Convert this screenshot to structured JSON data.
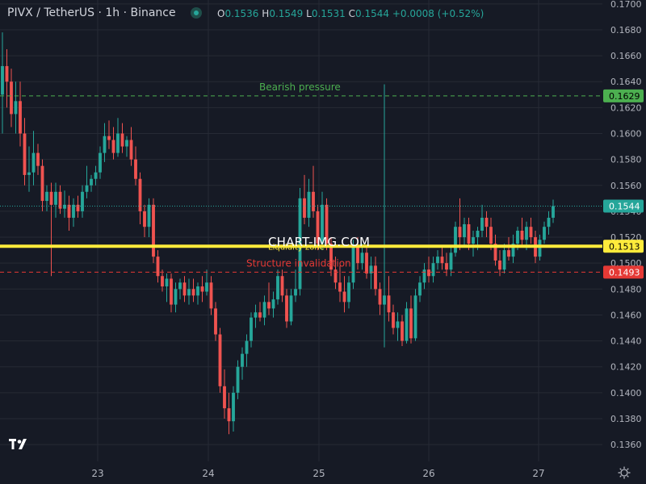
{
  "header": {
    "title": "PIVX / TetherUS · 1h · Binance",
    "ohlc": {
      "o_label": "O",
      "o": "0.1536",
      "h_label": "H",
      "h": "0.1549",
      "l_label": "L",
      "l": "0.1531",
      "c_label": "C",
      "c": "0.1544",
      "change": "+0.0008 (+0.52%)"
    }
  },
  "watermark": "CHART-IMG.COM",
  "colors": {
    "background": "#161a25",
    "up": "#26a69a",
    "down": "#ef5350",
    "grid": "#262a35",
    "axis_text": "#b2b5be",
    "bearish_line": "#4caf50",
    "invalidation_line": "#e53935",
    "liquidity_line": "#ffeb3b"
  },
  "chart_data": {
    "type": "candlestick",
    "x_tick_labels": [
      "23",
      "24",
      "25",
      "26",
      "27"
    ],
    "y_ticks": [
      "0.1700",
      "0.1680",
      "0.1660",
      "0.1640",
      "0.1620",
      "0.1600",
      "0.1580",
      "0.1560",
      "0.1540",
      "0.1520",
      "0.1500",
      "0.1480",
      "0.1460",
      "0.1440",
      "0.1420",
      "0.1400",
      "0.1380",
      "0.1360"
    ],
    "ylim": [
      0.1347,
      0.1703
    ],
    "grid": true,
    "last_price": {
      "value": 0.1544,
      "label": "0.1544"
    },
    "levels": [
      {
        "label": "Bearish pressure",
        "value": 0.1629,
        "value_label": "0.1629",
        "style": "dashed",
        "color": "#4caf50"
      },
      {
        "label": "Liquidity zone",
        "value": 0.1513,
        "value_label": "0.1513",
        "style": "solid",
        "color": "#ffeb3b"
      },
      {
        "label": "Structure invalidation",
        "value": 0.1493,
        "value_label": "0.1493",
        "style": "dashed",
        "color": "#e53935"
      }
    ],
    "candles": [
      [
        0.163,
        0.1678,
        0.16,
        0.1652
      ],
      [
        0.1652,
        0.1665,
        0.162,
        0.164
      ],
      [
        0.164,
        0.165,
        0.1605,
        0.1615
      ],
      [
        0.1615,
        0.164,
        0.16,
        0.1625
      ],
      [
        0.1625,
        0.164,
        0.159,
        0.16
      ],
      [
        0.16,
        0.1612,
        0.156,
        0.1568
      ],
      [
        0.1568,
        0.159,
        0.1555,
        0.157
      ],
      [
        0.157,
        0.1602,
        0.156,
        0.1585
      ],
      [
        0.1585,
        0.1592,
        0.1568,
        0.1575
      ],
      [
        0.1575,
        0.158,
        0.154,
        0.1548
      ],
      [
        0.1548,
        0.156,
        0.154,
        0.1555
      ],
      [
        0.1555,
        0.1562,
        0.149,
        0.1545
      ],
      [
        0.1545,
        0.1562,
        0.1535,
        0.1555
      ],
      [
        0.1555,
        0.156,
        0.1538,
        0.1542
      ],
      [
        0.1542,
        0.1556,
        0.1535,
        0.1545
      ],
      [
        0.1545,
        0.1552,
        0.1525,
        0.1535
      ],
      [
        0.1535,
        0.155,
        0.1528,
        0.1545
      ],
      [
        0.1545,
        0.1552,
        0.1535,
        0.154
      ],
      [
        0.154,
        0.156,
        0.1535,
        0.1555
      ],
      [
        0.1555,
        0.1575,
        0.155,
        0.156
      ],
      [
        0.156,
        0.1568,
        0.1555,
        0.1565
      ],
      [
        0.1565,
        0.1575,
        0.156,
        0.157
      ],
      [
        0.157,
        0.159,
        0.1565,
        0.1585
      ],
      [
        0.1585,
        0.1608,
        0.1578,
        0.1598
      ],
      [
        0.1598,
        0.161,
        0.1588,
        0.1595
      ],
      [
        0.1595,
        0.1605,
        0.158,
        0.1585
      ],
      [
        0.1585,
        0.1612,
        0.1582,
        0.16
      ],
      [
        0.16,
        0.1608,
        0.1585,
        0.159
      ],
      [
        0.159,
        0.1598,
        0.1582,
        0.1595
      ],
      [
        0.1595,
        0.1605,
        0.1575,
        0.158
      ],
      [
        0.158,
        0.159,
        0.156,
        0.1565
      ],
      [
        0.1565,
        0.157,
        0.153,
        0.154
      ],
      [
        0.154,
        0.1545,
        0.152,
        0.1528
      ],
      [
        0.1528,
        0.155,
        0.152,
        0.1545
      ],
      [
        0.1545,
        0.155,
        0.15,
        0.1505
      ],
      [
        0.1505,
        0.151,
        0.1485,
        0.149
      ],
      [
        0.149,
        0.1495,
        0.1478,
        0.1482
      ],
      [
        0.1482,
        0.1492,
        0.147,
        0.1488
      ],
      [
        0.1488,
        0.1492,
        0.1462,
        0.1468
      ],
      [
        0.1468,
        0.1485,
        0.1462,
        0.148
      ],
      [
        0.148,
        0.1488,
        0.1472,
        0.1485
      ],
      [
        0.1485,
        0.149,
        0.147,
        0.1475
      ],
      [
        0.1475,
        0.1488,
        0.1468,
        0.148
      ],
      [
        0.148,
        0.1488,
        0.147,
        0.1475
      ],
      [
        0.1475,
        0.1485,
        0.1468,
        0.1482
      ],
      [
        0.1482,
        0.149,
        0.147,
        0.1478
      ],
      [
        0.1478,
        0.1495,
        0.1475,
        0.1485
      ],
      [
        0.1485,
        0.149,
        0.146,
        0.1465
      ],
      [
        0.1465,
        0.147,
        0.144,
        0.1445
      ],
      [
        0.1445,
        0.145,
        0.14,
        0.1405
      ],
      [
        0.1405,
        0.1418,
        0.138,
        0.1388
      ],
      [
        0.1388,
        0.14,
        0.1368,
        0.1378
      ],
      [
        0.1378,
        0.1405,
        0.137,
        0.14
      ],
      [
        0.14,
        0.1425,
        0.1395,
        0.142
      ],
      [
        0.142,
        0.1435,
        0.141,
        0.143
      ],
      [
        0.143,
        0.1445,
        0.142,
        0.144
      ],
      [
        0.144,
        0.1462,
        0.1435,
        0.1458
      ],
      [
        0.1458,
        0.1468,
        0.145,
        0.1462
      ],
      [
        0.1462,
        0.147,
        0.1455,
        0.1458
      ],
      [
        0.1458,
        0.1475,
        0.1452,
        0.147
      ],
      [
        0.147,
        0.1485,
        0.146,
        0.1465
      ],
      [
        0.1465,
        0.1478,
        0.1458,
        0.1472
      ],
      [
        0.1472,
        0.1495,
        0.1468,
        0.149
      ],
      [
        0.149,
        0.1495,
        0.147,
        0.1475
      ],
      [
        0.1475,
        0.148,
        0.145,
        0.1455
      ],
      [
        0.1455,
        0.148,
        0.1452,
        0.1475
      ],
      [
        0.1475,
        0.1495,
        0.147,
        0.148
      ],
      [
        0.148,
        0.1558,
        0.1475,
        0.155
      ],
      [
        0.155,
        0.1568,
        0.153,
        0.1535
      ],
      [
        0.1535,
        0.1565,
        0.1528,
        0.1555
      ],
      [
        0.1555,
        0.1575,
        0.1535,
        0.154
      ],
      [
        0.154,
        0.1545,
        0.151,
        0.1515
      ],
      [
        0.1515,
        0.1555,
        0.151,
        0.1545
      ],
      [
        0.1545,
        0.155,
        0.151,
        0.1515
      ],
      [
        0.1515,
        0.152,
        0.149,
        0.1495
      ],
      [
        0.1495,
        0.1505,
        0.148,
        0.1485
      ],
      [
        0.1485,
        0.1498,
        0.147,
        0.1478
      ],
      [
        0.1478,
        0.149,
        0.1462,
        0.147
      ],
      [
        0.147,
        0.149,
        0.1465,
        0.1485
      ],
      [
        0.1485,
        0.1518,
        0.148,
        0.1512
      ],
      [
        0.1512,
        0.152,
        0.1495,
        0.15
      ],
      [
        0.15,
        0.1515,
        0.1495,
        0.1508
      ],
      [
        0.1508,
        0.1512,
        0.1488,
        0.1492
      ],
      [
        0.1492,
        0.1505,
        0.148,
        0.1498
      ],
      [
        0.1498,
        0.1505,
        0.1475,
        0.148
      ],
      [
        0.148,
        0.1485,
        0.146,
        0.1468
      ],
      [
        0.1468,
        0.1638,
        0.1435,
        0.1475
      ],
      [
        0.1475,
        0.149,
        0.1455,
        0.1462
      ],
      [
        0.1462,
        0.1468,
        0.1445,
        0.145
      ],
      [
        0.145,
        0.1462,
        0.144,
        0.1455
      ],
      [
        0.1455,
        0.146,
        0.1436,
        0.144
      ],
      [
        0.144,
        0.147,
        0.1438,
        0.1465
      ],
      [
        0.1465,
        0.1475,
        0.1438,
        0.1442
      ],
      [
        0.1442,
        0.148,
        0.144,
        0.1475
      ],
      [
        0.1475,
        0.149,
        0.147,
        0.1485
      ],
      [
        0.1485,
        0.15,
        0.148,
        0.1495
      ],
      [
        0.1495,
        0.1505,
        0.1485,
        0.149
      ],
      [
        0.149,
        0.1505,
        0.1485,
        0.15
      ],
      [
        0.15,
        0.151,
        0.1495,
        0.1505
      ],
      [
        0.1505,
        0.1512,
        0.1495,
        0.15
      ],
      [
        0.15,
        0.1508,
        0.149,
        0.1495
      ],
      [
        0.1495,
        0.1512,
        0.149,
        0.1508
      ],
      [
        0.1508,
        0.1532,
        0.1505,
        0.1528
      ],
      [
        0.1528,
        0.155,
        0.151,
        0.152
      ],
      [
        0.152,
        0.1535,
        0.1512,
        0.153
      ],
      [
        0.153,
        0.1535,
        0.151,
        0.1515
      ],
      [
        0.1515,
        0.1525,
        0.1505,
        0.152
      ],
      [
        0.152,
        0.1528,
        0.151,
        0.1525
      ],
      [
        0.1525,
        0.1545,
        0.152,
        0.1535
      ],
      [
        0.1535,
        0.154,
        0.152,
        0.1528
      ],
      [
        0.1528,
        0.1535,
        0.151,
        0.1515
      ],
      [
        0.1515,
        0.1522,
        0.1498,
        0.1502
      ],
      [
        0.1502,
        0.151,
        0.149,
        0.1495
      ],
      [
        0.1495,
        0.1515,
        0.1492,
        0.151
      ],
      [
        0.151,
        0.152,
        0.1502,
        0.1505
      ],
      [
        0.1505,
        0.1522,
        0.15,
        0.1515
      ],
      [
        0.1515,
        0.1528,
        0.151,
        0.1525
      ],
      [
        0.1525,
        0.1535,
        0.1512,
        0.1518
      ],
      [
        0.1518,
        0.1532,
        0.151,
        0.1528
      ],
      [
        0.1528,
        0.1535,
        0.1515,
        0.152
      ],
      [
        0.152,
        0.1525,
        0.15,
        0.1505
      ],
      [
        0.1505,
        0.1522,
        0.1502,
        0.1518
      ],
      [
        0.1518,
        0.1532,
        0.1515,
        0.1528
      ],
      [
        0.1528,
        0.154,
        0.1522,
        0.1535
      ],
      [
        0.1535,
        0.1549,
        0.1531,
        0.1544
      ]
    ]
  }
}
